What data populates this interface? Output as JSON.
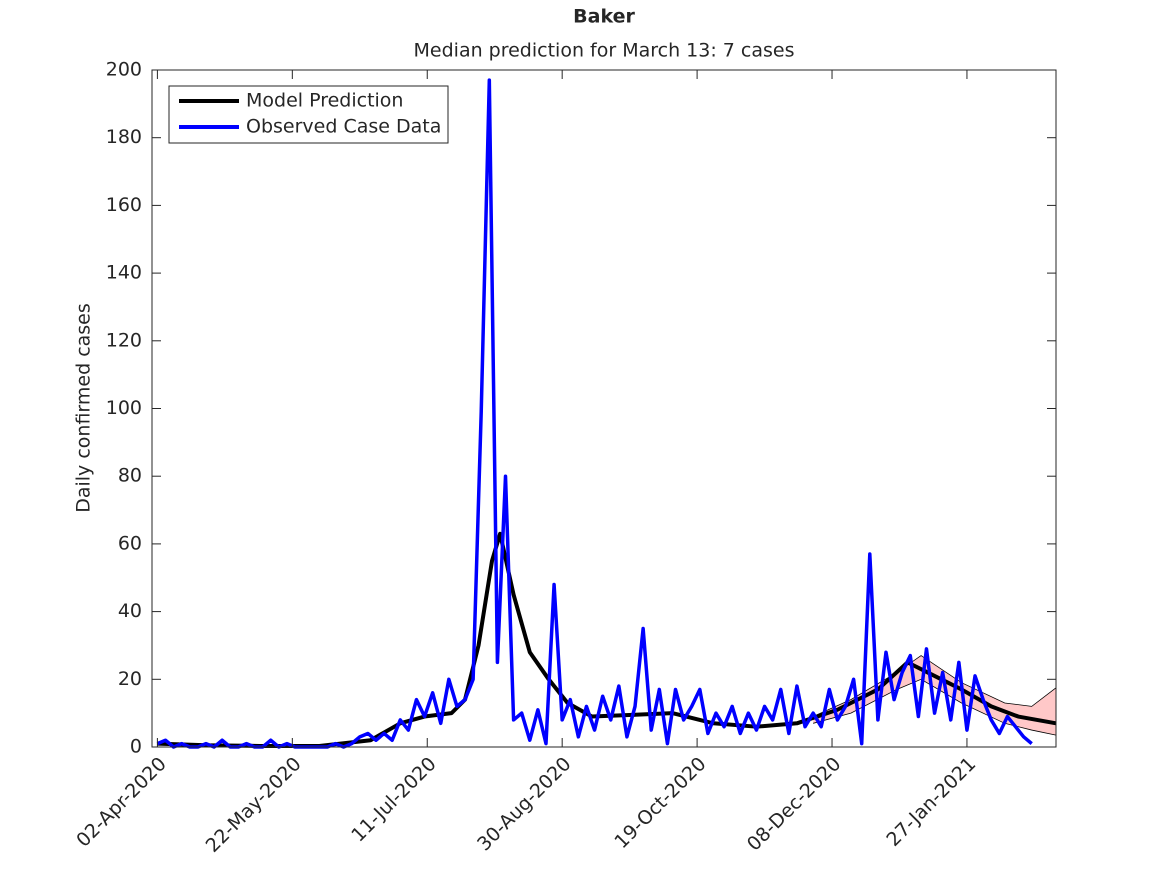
{
  "chart_data": {
    "type": "line",
    "title": "Baker",
    "subtitle": "Median prediction for March 13: 7 cases",
    "ylabel": "Daily confirmed cases",
    "xlim": [
      "2020-03-31",
      "2021-03-01"
    ],
    "ylim": [
      0,
      200
    ],
    "yticks": [
      0,
      20,
      40,
      60,
      80,
      100,
      120,
      140,
      160,
      180,
      200
    ],
    "xticks": [
      {
        "value": "2020-04-02",
        "label": "02-Apr-2020"
      },
      {
        "value": "2020-05-22",
        "label": "22-May-2020"
      },
      {
        "value": "2020-07-11",
        "label": "11-Jul-2020"
      },
      {
        "value": "2020-08-30",
        "label": "30-Aug-2020"
      },
      {
        "value": "2020-10-19",
        "label": "19-Oct-2020"
      },
      {
        "value": "2020-12-08",
        "label": "08-Dec-2020"
      },
      {
        "value": "2021-01-27",
        "label": "27-Jan-2021"
      }
    ],
    "legend_position": "upper-left",
    "band": {
      "color": "#ffc8c8",
      "x": [
        "2020-12-01",
        "2020-12-15",
        "2021-01-01",
        "2021-01-10",
        "2021-01-25",
        "2021-02-10",
        "2021-02-20",
        "2021-03-01"
      ],
      "lower": [
        7,
        10,
        17,
        20,
        13,
        7,
        5,
        3.5
      ],
      "upper": [
        9,
        14,
        22,
        27,
        19,
        13,
        12,
        17.5
      ]
    },
    "series": [
      {
        "name": "Model Prediction",
        "color": "#000000",
        "width": 4,
        "x": [
          "2020-04-02",
          "2020-04-20",
          "2020-05-10",
          "2020-06-01",
          "2020-06-20",
          "2020-07-01",
          "2020-07-10",
          "2020-07-20",
          "2020-07-25",
          "2020-07-30",
          "2020-08-04",
          "2020-08-07",
          "2020-08-12",
          "2020-08-18",
          "2020-08-25",
          "2020-09-01",
          "2020-09-10",
          "2020-09-25",
          "2020-10-10",
          "2020-10-25",
          "2020-11-10",
          "2020-11-25",
          "2020-12-10",
          "2020-12-25",
          "2021-01-05",
          "2021-01-15",
          "2021-01-25",
          "2021-02-05",
          "2021-02-15",
          "2021-03-01"
        ],
        "values": [
          1,
          0.5,
          0.3,
          0.3,
          2,
          7,
          9,
          10,
          14,
          30,
          55,
          63,
          45,
          28,
          20,
          13,
          9,
          9.5,
          10,
          7,
          6,
          7,
          11,
          17,
          25,
          21,
          17,
          12,
          9,
          7
        ]
      },
      {
        "name": "Observed Case Data",
        "color": "#0000ff",
        "width": 3.5,
        "x": [
          "2020-04-02",
          "2020-04-05",
          "2020-04-08",
          "2020-04-11",
          "2020-04-14",
          "2020-04-17",
          "2020-04-20",
          "2020-04-23",
          "2020-04-26",
          "2020-04-29",
          "2020-05-02",
          "2020-05-05",
          "2020-05-08",
          "2020-05-11",
          "2020-05-14",
          "2020-05-17",
          "2020-05-20",
          "2020-05-23",
          "2020-05-26",
          "2020-05-29",
          "2020-06-01",
          "2020-06-04",
          "2020-06-07",
          "2020-06-10",
          "2020-06-13",
          "2020-06-16",
          "2020-06-19",
          "2020-06-22",
          "2020-06-25",
          "2020-06-28",
          "2020-07-01",
          "2020-07-04",
          "2020-07-07",
          "2020-07-10",
          "2020-07-13",
          "2020-07-16",
          "2020-07-19",
          "2020-07-22",
          "2020-07-25",
          "2020-07-28",
          "2020-07-31",
          "2020-08-03",
          "2020-08-06",
          "2020-08-09",
          "2020-08-12",
          "2020-08-15",
          "2020-08-18",
          "2020-08-21",
          "2020-08-24",
          "2020-08-27",
          "2020-08-30",
          "2020-09-02",
          "2020-09-05",
          "2020-09-08",
          "2020-09-11",
          "2020-09-14",
          "2020-09-17",
          "2020-09-20",
          "2020-09-23",
          "2020-09-26",
          "2020-09-29",
          "2020-10-02",
          "2020-10-05",
          "2020-10-08",
          "2020-10-11",
          "2020-10-14",
          "2020-10-17",
          "2020-10-20",
          "2020-10-23",
          "2020-10-26",
          "2020-10-29",
          "2020-11-01",
          "2020-11-04",
          "2020-11-07",
          "2020-11-10",
          "2020-11-13",
          "2020-11-16",
          "2020-11-19",
          "2020-11-22",
          "2020-11-25",
          "2020-11-28",
          "2020-12-01",
          "2020-12-04",
          "2020-12-07",
          "2020-12-10",
          "2020-12-13",
          "2020-12-16",
          "2020-12-19",
          "2020-12-22",
          "2020-12-25",
          "2020-12-28",
          "2020-12-31",
          "2021-01-03",
          "2021-01-06",
          "2021-01-09",
          "2021-01-12",
          "2021-01-15",
          "2021-01-18",
          "2021-01-21",
          "2021-01-24",
          "2021-01-27",
          "2021-01-30",
          "2021-02-02",
          "2021-02-05",
          "2021-02-08",
          "2021-02-11",
          "2021-02-14",
          "2021-02-17",
          "2021-02-20"
        ],
        "values": [
          1,
          2,
          0,
          1,
          0,
          0,
          1,
          0,
          2,
          0,
          0,
          1,
          0,
          0,
          2,
          0,
          1,
          0,
          0,
          0,
          0,
          0,
          1,
          0,
          1,
          3,
          4,
          2,
          4,
          2,
          8,
          5,
          14,
          9,
          16,
          7,
          20,
          12,
          14,
          20,
          99,
          197,
          25,
          80,
          8,
          10,
          2,
          11,
          1,
          48,
          8,
          14,
          3,
          12,
          5,
          15,
          8,
          18,
          3,
          12,
          35,
          5,
          17,
          1,
          17,
          8,
          12,
          17,
          4,
          10,
          6,
          12,
          4,
          10,
          5,
          12,
          8,
          17,
          4,
          18,
          6,
          10,
          6,
          17,
          8,
          12,
          20,
          1,
          57,
          8,
          28,
          14,
          22,
          27,
          9,
          29,
          10,
          22,
          8,
          25,
          5,
          21,
          14,
          8,
          4,
          9,
          6,
          3,
          1
        ]
      }
    ]
  }
}
